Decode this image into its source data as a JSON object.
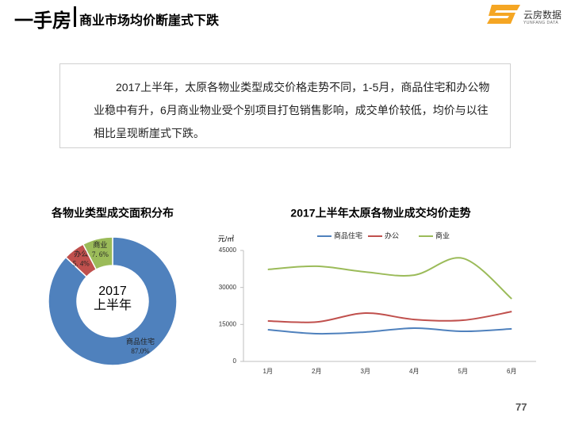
{
  "header": {
    "title": "一手房",
    "subtitle": "商业市场均价断崖式下跌",
    "logo": "云房数据",
    "logo_sub": "YUNFANG DATA"
  },
  "paragraph": "2017上半年，太原各物业类型成交价格走势不同，1-5月，商品住宅和办公物业稳中有升，6月商业物业受个别项目打包销售影响，成交单价较低，均价与以往相比呈现断崖式下跌。",
  "page_number": "77",
  "chart_data": [
    {
      "type": "donut",
      "title": "各物业类型成交面积分布",
      "center_label": [
        "2017",
        "上半年"
      ],
      "categories": [
        "商品住宅",
        "办公",
        "商业"
      ],
      "values": [
        87.0,
        5.4,
        7.6
      ],
      "value_labels": [
        "87.0%",
        "5. 4%",
        "7. 6%"
      ],
      "colors": [
        "#4f81bd",
        "#c0504d",
        "#9bbb59"
      ]
    },
    {
      "type": "line",
      "title": "2017上半年太原各物业成交均价走势",
      "y_label": "元/㎡",
      "categories": [
        "1月",
        "2月",
        "3月",
        "4月",
        "5月",
        "6月"
      ],
      "series": [
        {
          "name": "商品住宅",
          "color": "#4f81bd",
          "values": [
            12850,
            11250,
            11900,
            13500,
            12200,
            13200
          ]
        },
        {
          "name": "办公",
          "color": "#c0504d",
          "values": [
            16400,
            16000,
            19600,
            17000,
            16700,
            20200
          ]
        },
        {
          "name": "商业",
          "color": "#9bbb59",
          "values": [
            37300,
            38600,
            36300,
            35000,
            41800,
            25400
          ]
        }
      ],
      "ylim": [
        0,
        45000
      ],
      "yticks": [
        0,
        15000,
        30000,
        45000
      ],
      "grid": false,
      "smooth": true,
      "legend": "top"
    }
  ]
}
